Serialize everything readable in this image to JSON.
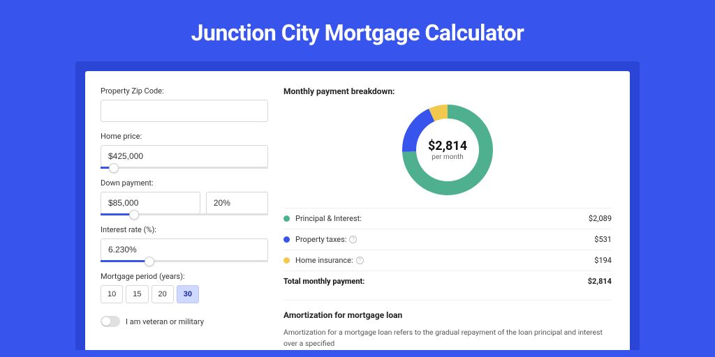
{
  "title": "Junction City Mortgage Calculator",
  "colors": {
    "page_bg": "#3754ed",
    "card_wrap_bg": "#2b45d6",
    "accent": "#3754ed"
  },
  "form": {
    "zip_label": "Property Zip Code:",
    "zip_value": "",
    "home_price_label": "Home price:",
    "home_price_value": "$425,000",
    "home_price_slider_pct": 8,
    "down_label": "Down payment:",
    "down_value": "$85,000",
    "down_pct_value": "20%",
    "down_slider_pct": 20,
    "rate_label": "Interest rate (%):",
    "rate_value": "6.230%",
    "rate_slider_pct": 29,
    "period_label": "Mortgage period (years):",
    "periods": [
      "10",
      "15",
      "20",
      "30"
    ],
    "period_active_index": 3,
    "veteran_label": "I am veteran or military",
    "veteran_on": false
  },
  "breakdown": {
    "title": "Monthly payment breakdown:",
    "donut": {
      "amount": "$2,814",
      "sub": "per month",
      "series": [
        {
          "label": "Principal & Interest",
          "value": 2089,
          "pct": 74.2,
          "color": "#4fb08f"
        },
        {
          "label": "Property taxes",
          "value": 531,
          "pct": 18.9,
          "color": "#3754ed"
        },
        {
          "label": "Home insurance",
          "value": 194,
          "pct": 6.9,
          "color": "#f2c94c"
        }
      ],
      "stroke_width": 20,
      "radius": 55,
      "bg": "#ffffff"
    },
    "rows": [
      {
        "color": "#4fb08f",
        "label": "Principal & Interest:",
        "value": "$2,089",
        "info": false
      },
      {
        "color": "#3754ed",
        "label": "Property taxes:",
        "value": "$531",
        "info": true
      },
      {
        "color": "#f2c94c",
        "label": "Home insurance:",
        "value": "$194",
        "info": true
      }
    ],
    "total_label": "Total monthly payment:",
    "total_value": "$2,814"
  },
  "amortization": {
    "title": "Amortization for mortgage loan",
    "text": "Amortization for a mortgage loan refers to the gradual repayment of the loan principal and interest over a specified"
  }
}
